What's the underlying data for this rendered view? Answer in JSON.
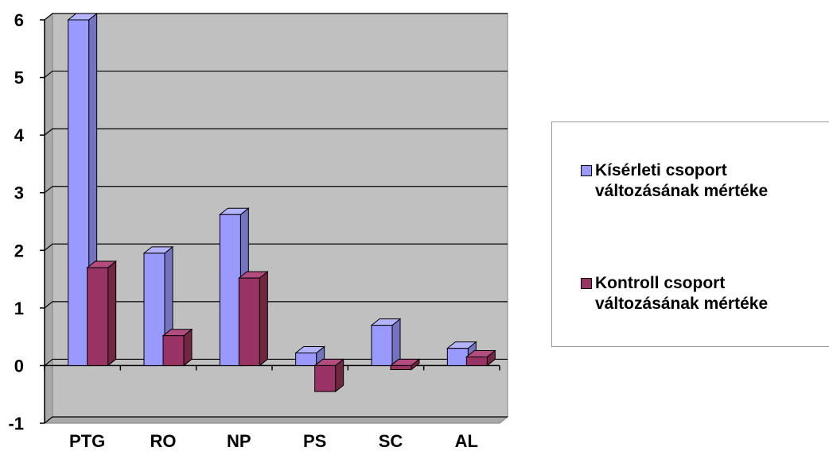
{
  "chart_data": {
    "type": "bar",
    "categories": [
      "PTG",
      "RO",
      "NP",
      "PS",
      "SC",
      "AL"
    ],
    "series": [
      {
        "name": "Kísérleti csoport változásának mértéke",
        "values": [
          6.0,
          1.95,
          2.62,
          0.22,
          0.7,
          0.3
        ]
      },
      {
        "name": "Kontroll csoport változásának mértéke",
        "values": [
          1.7,
          0.52,
          1.52,
          -0.45,
          -0.07,
          0.15
        ]
      }
    ],
    "yticks": [
      -1,
      0,
      1,
      2,
      3,
      4,
      5,
      6
    ],
    "ylim": [
      -1,
      6
    ],
    "grid": true,
    "legend_position": "right",
    "colors": {
      "series0_face": "#9999ff",
      "series0_side": "#7373bf",
      "series0_top": "#b3b3ff",
      "series1_face": "#993366",
      "series1_side": "#732640",
      "series1_top": "#b34d80",
      "wall": "#c0c0c0",
      "floor": "#a9a9a9"
    }
  }
}
